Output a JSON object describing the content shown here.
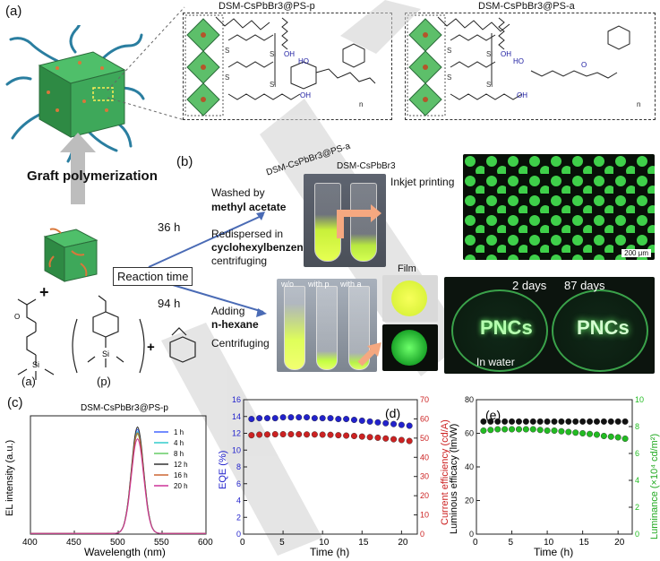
{
  "panel_a": {
    "label": "(a)",
    "graft_label": "Graft polymerization",
    "box1_title": "DSM-CsPbBr3@PS-p",
    "box2_title": "DSM-CsPbBr3@PS-a",
    "mol_si": "Si",
    "mol_oh": "OH",
    "mol_o": "O",
    "mol_ho": "HO",
    "mol_s": "S",
    "mol_n": "n",
    "plus": "+",
    "monomer_a_label": "(a)",
    "monomer_p_label": "(p)"
  },
  "panel_b": {
    "label": "(b)",
    "reaction_time": "Reaction time",
    "t36": "36 h",
    "t94": "94 h",
    "washed_by": "Washed by",
    "methyl_acetate": "methyl acetate",
    "redispersed_in": "Redispersed in",
    "solvent": "cyclohexylbenzene,",
    "centrifuging": "centrifuging",
    "adding": "Adding",
    "n_hexane": "n-hexane",
    "centrifuging2": "Centrifuging",
    "inkjet": "Inkjet printing",
    "vial_label_1": "DSM-CsPbBr3@PS-a",
    "vial_label_2": "DSM-CsPbBr3",
    "tube_wo": "w/o",
    "tube_p": "with p",
    "tube_a": "with a",
    "film": "Film",
    "days2": "2 days",
    "days87": "87 days",
    "pncs": "PNCs",
    "in_water": "In water",
    "scale": "200 μm"
  },
  "chart_data": [
    {
      "type": "line",
      "panel": "(c)",
      "title": "DSM-CsPbBr3@PS-p",
      "xlabel": "Wavelength (nm)",
      "ylabel": "EL intensity (a.u.)",
      "xlim": [
        400,
        600
      ],
      "xticks": [
        400,
        450,
        500,
        550,
        600
      ],
      "peak_nm": 522,
      "series": [
        {
          "name": "1 h",
          "color": "#4466ff",
          "peak": 0.88
        },
        {
          "name": "4 h",
          "color": "#33cccc",
          "peak": 0.86
        },
        {
          "name": "8 h",
          "color": "#66cc66",
          "peak": 0.84
        },
        {
          "name": "12 h",
          "color": "#333333",
          "peak": 0.9
        },
        {
          "name": "16 h",
          "color": "#cc6633",
          "peak": 0.85
        },
        {
          "name": "20 h",
          "color": "#cc3399",
          "peak": 0.8
        }
      ]
    },
    {
      "type": "scatter",
      "panel": "(d)",
      "xlabel": "Time (h)",
      "ylabel": "EQE (%)",
      "ylabel2": "Current efficiency (cd/A)",
      "xlim": [
        0,
        22
      ],
      "ylim": [
        0,
        16
      ],
      "ylim2": [
        0,
        70
      ],
      "xticks": [
        0,
        5,
        10,
        15,
        20
      ],
      "yticks": [
        0,
        2,
        4,
        6,
        8,
        10,
        12,
        14,
        16
      ],
      "yticks2": [
        0,
        10,
        20,
        30,
        40,
        50,
        60,
        70
      ],
      "series": [
        {
          "name": "EQE",
          "color": "#2222cc",
          "axis": "left",
          "x": [
            1,
            2,
            3,
            4,
            5,
            6,
            7,
            8,
            9,
            10,
            11,
            12,
            13,
            14,
            15,
            16,
            17,
            18,
            19,
            20,
            21
          ],
          "y": [
            13.7,
            13.8,
            13.8,
            13.8,
            13.9,
            13.9,
            13.9,
            13.9,
            13.8,
            13.8,
            13.8,
            13.7,
            13.7,
            13.6,
            13.5,
            13.4,
            13.3,
            13.2,
            13.1,
            13.0,
            12.9
          ]
        },
        {
          "name": "Current efficiency",
          "color": "#cc2222",
          "axis": "right",
          "x": [
            1,
            2,
            3,
            4,
            5,
            6,
            7,
            8,
            9,
            10,
            11,
            12,
            13,
            14,
            15,
            16,
            17,
            18,
            19,
            20,
            21
          ],
          "y": [
            51.5,
            51.8,
            51.9,
            52.0,
            52.0,
            52.0,
            52.0,
            51.9,
            51.9,
            51.8,
            51.7,
            51.5,
            51.3,
            51.1,
            50.8,
            50.5,
            50.2,
            49.8,
            49.4,
            49.0,
            48.5
          ]
        }
      ]
    },
    {
      "type": "scatter",
      "panel": "(e)",
      "xlabel": "Time (h)",
      "ylabel": "Luminous efficacy (lm/W)",
      "ylabel2": "Luminance (×10⁴ cd/m²)",
      "xlim": [
        0,
        22
      ],
      "ylim": [
        0,
        80
      ],
      "ylim2": [
        0,
        10
      ],
      "xticks": [
        0,
        5,
        10,
        15,
        20
      ],
      "yticks": [
        0,
        20,
        40,
        60,
        80
      ],
      "yticks2": [
        0,
        2,
        4,
        6,
        8,
        10
      ],
      "series": [
        {
          "name": "Luminous efficacy",
          "color": "#111111",
          "axis": "left",
          "x": [
            1,
            2,
            3,
            4,
            5,
            6,
            7,
            8,
            9,
            10,
            11,
            12,
            13,
            14,
            15,
            16,
            17,
            18,
            19,
            20,
            21
          ],
          "y": [
            67,
            67,
            67,
            67,
            67,
            67,
            67,
            67,
            67,
            67,
            67,
            67,
            67,
            67,
            67,
            67,
            67,
            67,
            67,
            67,
            67
          ]
        },
        {
          "name": "Luminance",
          "color": "#22bb22",
          "axis": "right",
          "x": [
            1,
            2,
            3,
            4,
            5,
            6,
            7,
            8,
            9,
            10,
            11,
            12,
            13,
            14,
            15,
            16,
            17,
            18,
            19,
            20,
            21
          ],
          "y": [
            7.7,
            7.75,
            7.8,
            7.8,
            7.8,
            7.8,
            7.8,
            7.8,
            7.75,
            7.7,
            7.7,
            7.65,
            7.6,
            7.55,
            7.5,
            7.45,
            7.4,
            7.3,
            7.25,
            7.2,
            7.1
          ]
        }
      ]
    }
  ]
}
